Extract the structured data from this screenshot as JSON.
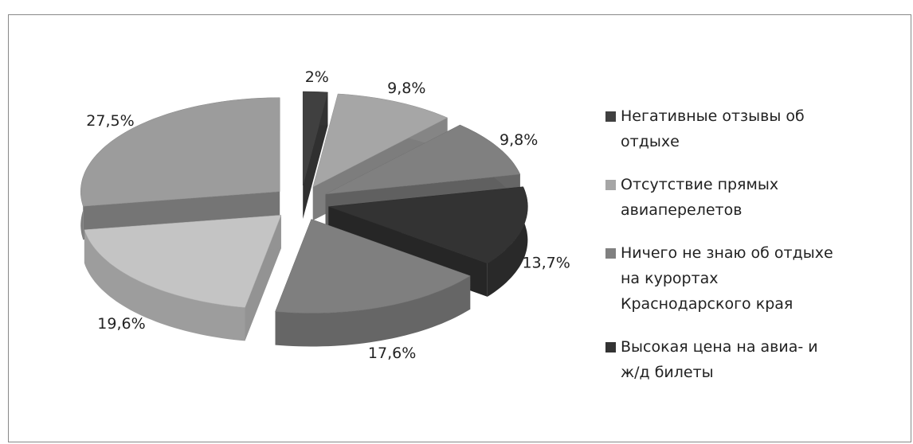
{
  "chart_data": {
    "type": "pie",
    "categories": [
      "Негативные отзывы об отдыхе",
      "Отсутствие прямых авиаперелетов",
      "Ничего не знаю об отдыхе на курортах Краснодарского края",
      "Высокая цена на авиа- и ж/д билеты",
      null,
      null,
      null
    ],
    "values": [
      2,
      9.8,
      9.8,
      13.7,
      17.6,
      19.6,
      27.5
    ],
    "value_labels": [
      "2%",
      "9,8%",
      "9,8%",
      "13,7%",
      "17,6%",
      "19,6%",
      "27,5%"
    ],
    "colors": [
      "#404040",
      "#a6a6a6",
      "#808080",
      "#333333",
      "#7f7f7f",
      "#c4c4c4",
      "#9c9c9c"
    ],
    "legend": "right"
  }
}
